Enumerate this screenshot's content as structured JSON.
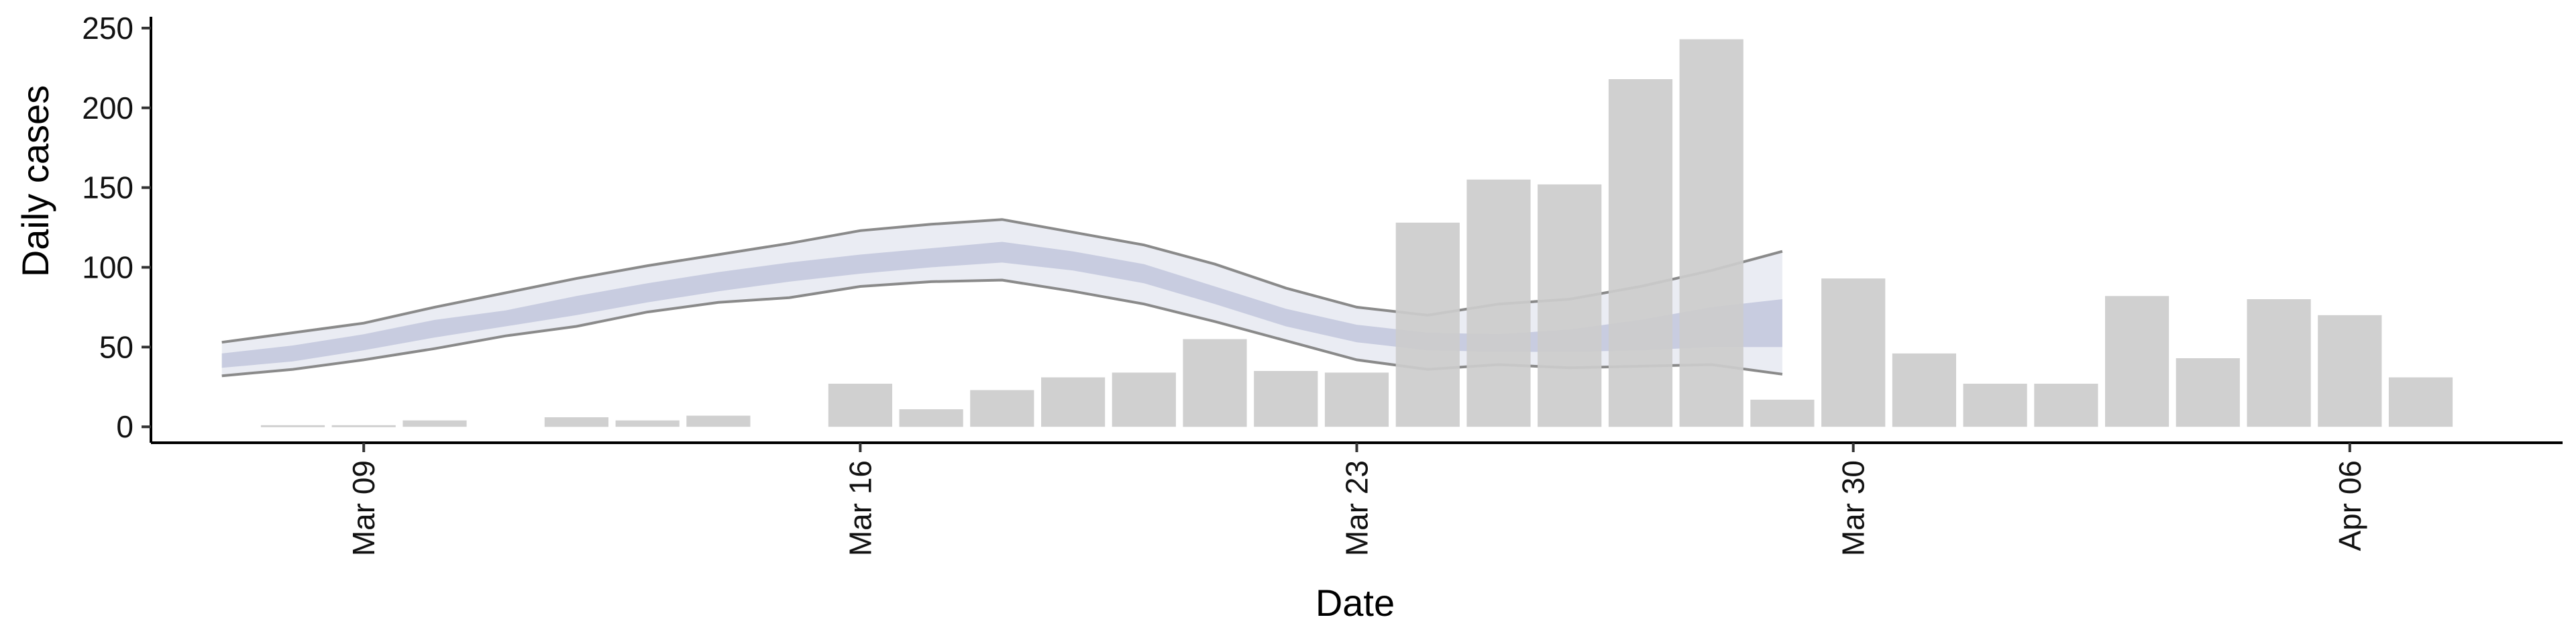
{
  "chart_data": {
    "type": "bar",
    "xlabel": "Date",
    "ylabel": "Daily cases",
    "ylim": [
      -10,
      255
    ],
    "y_ticks": [
      0,
      50,
      100,
      150,
      200,
      250
    ],
    "x_ticks": [
      {
        "date": "2020-03-09",
        "label": "Mar 09"
      },
      {
        "date": "2020-03-16",
        "label": "Mar 16"
      },
      {
        "date": "2020-03-23",
        "label": "Mar 23"
      },
      {
        "date": "2020-03-30",
        "label": "Mar 30"
      },
      {
        "date": "2020-04-06",
        "label": "Apr 06"
      }
    ],
    "xlim": [
      "2020-03-06",
      "2020-04-09"
    ],
    "grid": false,
    "bar_color": "#cccccc",
    "band_fill_color": "#d9dcea",
    "band_core_color": "#bcc2da",
    "band_line_color": "#8a8a8a",
    "bars": [
      {
        "date": "2020-03-08",
        "value": 1
      },
      {
        "date": "2020-03-09",
        "value": 1
      },
      {
        "date": "2020-03-10",
        "value": 4
      },
      {
        "date": "2020-03-11",
        "value": 0
      },
      {
        "date": "2020-03-12",
        "value": 6
      },
      {
        "date": "2020-03-13",
        "value": 4
      },
      {
        "date": "2020-03-14",
        "value": 7
      },
      {
        "date": "2020-03-15",
        "value": 0
      },
      {
        "date": "2020-03-16",
        "value": 27
      },
      {
        "date": "2020-03-17",
        "value": 11
      },
      {
        "date": "2020-03-18",
        "value": 23
      },
      {
        "date": "2020-03-19",
        "value": 31
      },
      {
        "date": "2020-03-20",
        "value": 34
      },
      {
        "date": "2020-03-21",
        "value": 55
      },
      {
        "date": "2020-03-22",
        "value": 35
      },
      {
        "date": "2020-03-23",
        "value": 34
      },
      {
        "date": "2020-03-24",
        "value": 128
      },
      {
        "date": "2020-03-25",
        "value": 155
      },
      {
        "date": "2020-03-26",
        "value": 152
      },
      {
        "date": "2020-03-27",
        "value": 218
      },
      {
        "date": "2020-03-28",
        "value": 243
      },
      {
        "date": "2020-03-29",
        "value": 17
      },
      {
        "date": "2020-03-30",
        "value": 93
      },
      {
        "date": "2020-03-31",
        "value": 46
      },
      {
        "date": "2020-04-01",
        "value": 27
      },
      {
        "date": "2020-04-02",
        "value": 27
      },
      {
        "date": "2020-04-03",
        "value": 82
      },
      {
        "date": "2020-04-04",
        "value": 43
      },
      {
        "date": "2020-04-05",
        "value": 80
      },
      {
        "date": "2020-04-06",
        "value": 70
      },
      {
        "date": "2020-04-07",
        "value": 31
      }
    ],
    "band": {
      "dates": [
        "2020-03-07",
        "2020-03-08",
        "2020-03-09",
        "2020-03-10",
        "2020-03-11",
        "2020-03-12",
        "2020-03-13",
        "2020-03-14",
        "2020-03-15",
        "2020-03-16",
        "2020-03-17",
        "2020-03-18",
        "2020-03-19",
        "2020-03-20",
        "2020-03-21",
        "2020-03-22",
        "2020-03-23",
        "2020-03-24",
        "2020-03-25",
        "2020-03-26",
        "2020-03-27",
        "2020-03-28",
        "2020-03-29"
      ],
      "outer_upper": [
        53,
        59,
        65,
        75,
        84,
        93,
        101,
        108,
        115,
        123,
        127,
        130,
        122,
        114,
        102,
        87,
        75,
        70,
        77,
        80,
        88,
        98,
        110
      ],
      "outer_lower": [
        32,
        36,
        42,
        49,
        57,
        63,
        72,
        78,
        81,
        88,
        91,
        92,
        85,
        77,
        66,
        54,
        42,
        36,
        39,
        37,
        38,
        39,
        33
      ],
      "inner_upper": [
        46,
        51,
        58,
        67,
        73,
        82,
        90,
        97,
        103,
        108,
        112,
        116,
        110,
        102,
        88,
        74,
        64,
        59,
        58,
        61,
        67,
        75,
        80
      ],
      "inner_lower": [
        37,
        41,
        48,
        56,
        63,
        70,
        78,
        85,
        91,
        96,
        100,
        103,
        98,
        90,
        77,
        63,
        53,
        48,
        47,
        47,
        48,
        50,
        50
      ]
    }
  }
}
